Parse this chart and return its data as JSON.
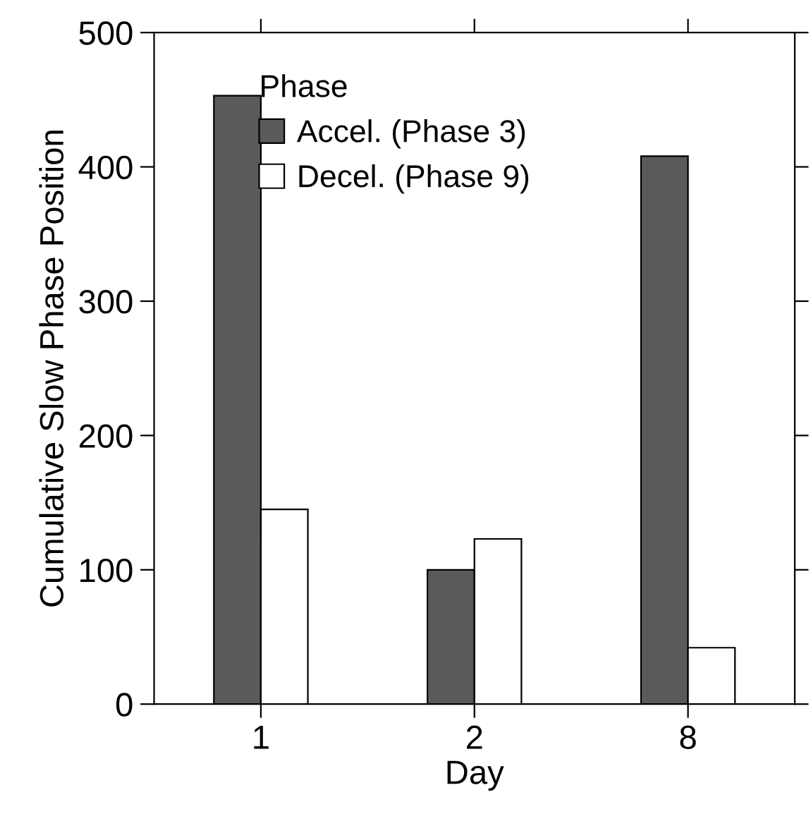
{
  "chart_data": {
    "type": "bar",
    "xlabel": "Day",
    "ylabel": "Cumulative Slow Phase Position",
    "categories": [
      "1",
      "2",
      "8"
    ],
    "series": [
      {
        "name": "Accel. (Phase 3)",
        "color": "#5a5a5a",
        "values": [
          453,
          100,
          408
        ]
      },
      {
        "name": "Decel. (Phase 9)",
        "color": "#ffffff",
        "values": [
          145,
          123,
          42
        ]
      }
    ],
    "ylim": [
      0,
      500
    ],
    "yticks": [
      0,
      100,
      200,
      300,
      400,
      500
    ],
    "grid": false,
    "legend": "top left",
    "legend_title": "Phase"
  }
}
